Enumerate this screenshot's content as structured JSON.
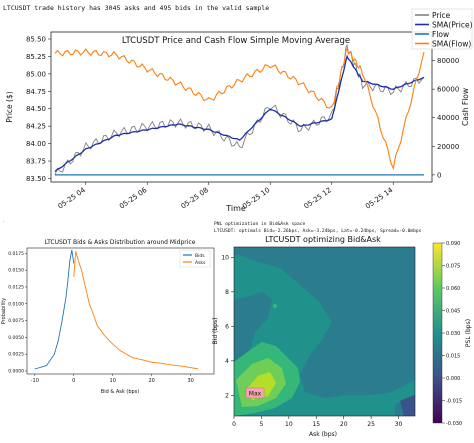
{
  "header_text": "LTCUSDT trade history has 3045 asks and  495 bids in the valid sample",
  "main_chart": {
    "title": "LTCUSDT Price and Cash Flow Simple Moving Average",
    "ylabel_left": "Price ($)",
    "ylabel_right": "Cash Flow",
    "xlabel": "Time",
    "x_ticks": [
      "05-25 04",
      "05-25 06",
      "05-25 08",
      "05-25 10",
      "05-25 12",
      "05-25 14"
    ],
    "y_ticks_left": [
      "83.50",
      "83.75",
      "84.00",
      "84.25",
      "84.50",
      "84.75",
      "85.00",
      "85.25",
      "85.50"
    ],
    "y_ticks_right": [
      "0",
      "20000",
      "40000",
      "60000",
      "80000"
    ],
    "legend": [
      "Price",
      "SMA(Price)",
      "Flow",
      "SMA(Flow)"
    ],
    "colors": {
      "price": "#808080",
      "sma_price": "#1f2fa8",
      "flow": "#1f77b4",
      "sma_flow": "#ff7f0e"
    }
  },
  "dist_chart": {
    "title": "LTCUSDT Bids & Asks Distribution around Midprice",
    "xlabel": "Bid & Ask (bps)",
    "ylabel": "Probability",
    "x_ticks": [
      "-10",
      "0",
      "10",
      "20",
      "30"
    ],
    "y_ticks": [
      "0.0000",
      "0.0025",
      "0.0050",
      "0.0075",
      "0.0100",
      "0.0125",
      "0.0150",
      "0.0175"
    ],
    "legend": [
      "Bids",
      "Asks"
    ],
    "colors": {
      "bids": "#1f77b4",
      "asks": "#ff7f0e"
    }
  },
  "opt_chart": {
    "caption_line1": "PNL optimization in Bid&Ask space",
    "caption_line2": "LTCUSDT: optimals Bid=-2.26bps, Ask=-3.24bps, Lat=-0.24bps, Spread=-0.0mbps",
    "title": "LTCUSDT optimizing Bid&Ask",
    "xlabel": "Ask (bps)",
    "ylabel": "Bid (bps)",
    "colorbar_label": "PSL (bps)",
    "x_ticks": [
      "0",
      "5",
      "10",
      "15",
      "20",
      "25",
      "30"
    ],
    "y_ticks": [
      "2",
      "4",
      "6",
      "8",
      "10"
    ],
    "colorbar_ticks": [
      "0.090",
      "0.075",
      "0.060",
      "0.045",
      "0.030",
      "0.015",
      "0.000",
      "-0.015",
      "-0.030"
    ],
    "max_label": "Max"
  },
  "chart_data": [
    {
      "type": "line",
      "title": "LTCUSDT Price and Cash Flow Simple Moving Average",
      "xlabel": "Time",
      "ylabel": "Price ($)",
      "ylim": [
        83.45,
        85.6
      ],
      "y2lim": [
        -5000,
        100000
      ],
      "x": [
        "05-25 03",
        "05-25 04",
        "05-25 05",
        "05-25 06",
        "05-25 07",
        "05-25 08",
        "05-25 09",
        "05-25 10",
        "05-25 11",
        "05-25 12",
        "05-25 12:30",
        "05-25 13",
        "05-25 14",
        "05-25 15"
      ],
      "series": [
        {
          "name": "Price",
          "axis": "left",
          "values": [
            83.55,
            83.95,
            84.15,
            84.25,
            84.3,
            84.22,
            83.95,
            84.55,
            84.2,
            84.4,
            85.4,
            84.85,
            84.75,
            84.95
          ]
        },
        {
          "name": "SMA(Price)",
          "axis": "left",
          "values": [
            83.6,
            83.92,
            84.12,
            84.2,
            84.28,
            84.2,
            84.05,
            84.5,
            84.25,
            84.35,
            85.25,
            84.9,
            84.78,
            84.95
          ]
        },
        {
          "name": "Flow",
          "axis": "right",
          "values": [
            0,
            0,
            0,
            0,
            0,
            0,
            0,
            0,
            0,
            0,
            0,
            0,
            0,
            0
          ]
        },
        {
          "name": "SMA(Flow)",
          "axis": "right",
          "values": [
            85000,
            86000,
            84000,
            74000,
            64000,
            52000,
            66000,
            77000,
            64000,
            46000,
            88000,
            72000,
            5000,
            86000
          ]
        }
      ]
    },
    {
      "type": "line",
      "title": "LTCUSDT Bids & Asks Distribution around Midprice",
      "xlabel": "Bid & Ask (bps)",
      "ylabel": "Probability",
      "xlim": [
        -12,
        36
      ],
      "ylim": [
        0,
        0.018
      ],
      "series": [
        {
          "name": "Bids",
          "x": [
            -10,
            -7,
            -5,
            -4,
            -3,
            -2,
            -1.5,
            -1,
            -0.5,
            0
          ],
          "y": [
            0.0003,
            0.0008,
            0.0025,
            0.0045,
            0.0075,
            0.011,
            0.0135,
            0.0165,
            0.018,
            0.016
          ]
        },
        {
          "name": "Asks",
          "x": [
            0,
            0.5,
            1,
            2,
            3,
            4,
            5,
            6,
            8,
            10,
            12,
            15,
            18,
            20,
            22,
            25,
            28,
            30,
            32
          ],
          "y": [
            0.014,
            0.0178,
            0.0168,
            0.015,
            0.0125,
            0.01,
            0.0085,
            0.0068,
            0.0052,
            0.004,
            0.003,
            0.002,
            0.0016,
            0.0013,
            0.0012,
            0.0009,
            0.0007,
            0.0005,
            0.0003
          ]
        }
      ]
    },
    {
      "type": "heatmap",
      "title": "LTCUSDT optimizing Bid&Ask",
      "xlabel": "Ask (bps)",
      "ylabel": "Bid (bps)",
      "xlim": [
        0,
        33
      ],
      "ylim": [
        0.8,
        10.6
      ],
      "zlim": [
        -0.03,
        0.09
      ],
      "max_point": {
        "x": 3.3,
        "y": 2.3
      }
    }
  ]
}
